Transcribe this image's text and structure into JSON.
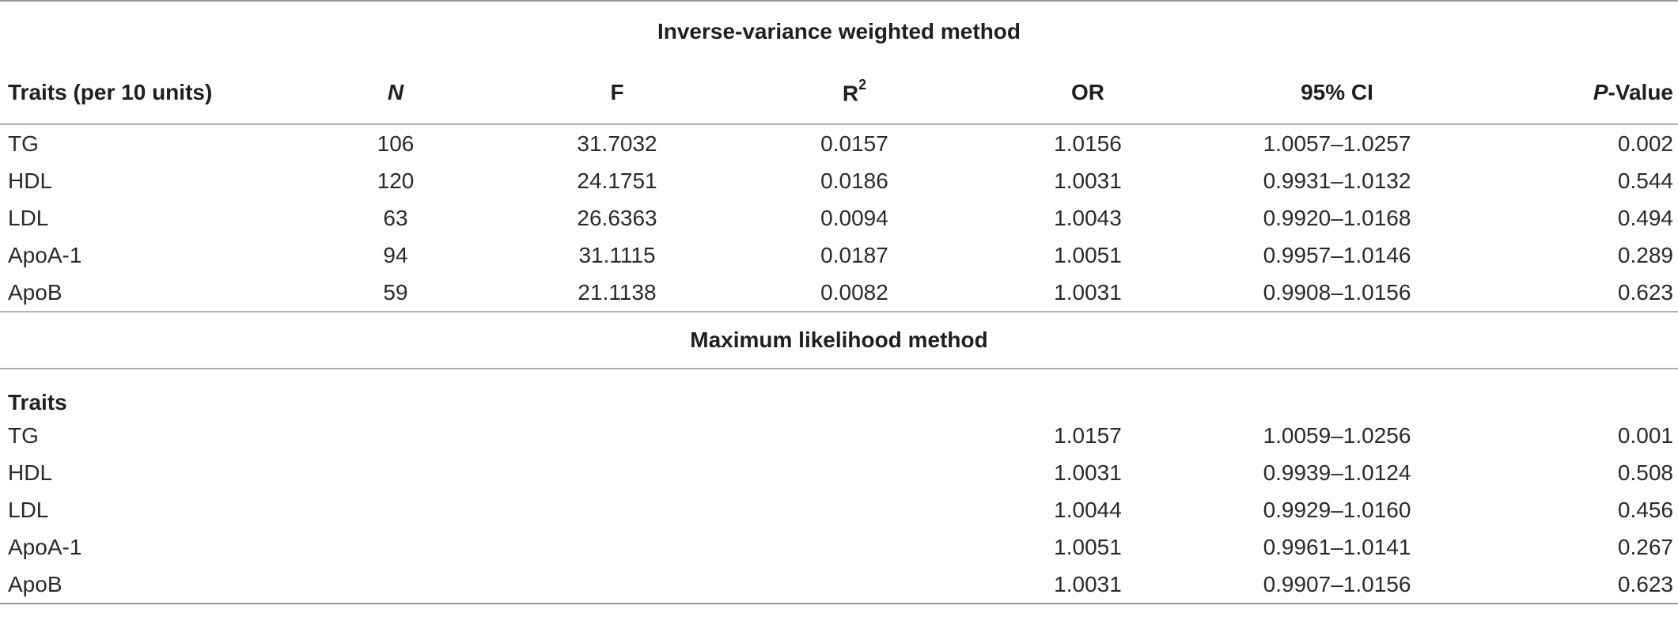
{
  "section1": {
    "title": "Inverse-variance weighted method",
    "headers": {
      "traits": "Traits (per 10 units)",
      "n": "N",
      "f": "F",
      "r2_base": "R",
      "r2_sup": "2",
      "or": "OR",
      "ci": "95% CI",
      "p_italic": "P",
      "p_rest": "-Value"
    },
    "rows": [
      {
        "trait": "TG",
        "n": "106",
        "f": "31.7032",
        "r2": "0.0157",
        "or": "1.0156",
        "ci": "1.0057–1.0257",
        "p": "0.002"
      },
      {
        "trait": "HDL",
        "n": "120",
        "f": "24.1751",
        "r2": "0.0186",
        "or": "1.0031",
        "ci": "0.9931–1.0132",
        "p": "0.544"
      },
      {
        "trait": "LDL",
        "n": "63",
        "f": "26.6363",
        "r2": "0.0094",
        "or": "1.0043",
        "ci": "0.9920–1.0168",
        "p": "0.494"
      },
      {
        "trait": "ApoA-1",
        "n": "94",
        "f": "31.1115",
        "r2": "0.0187",
        "or": "1.0051",
        "ci": "0.9957–1.0146",
        "p": "0.289"
      },
      {
        "trait": "ApoB",
        "n": "59",
        "f": "21.1138",
        "r2": "0.0082",
        "or": "1.0031",
        "ci": "0.9908–1.0156",
        "p": "0.623"
      }
    ]
  },
  "section2": {
    "title": "Maximum likelihood method",
    "traits_label": "Traits",
    "rows": [
      {
        "trait": "TG",
        "or": "1.0157",
        "ci": "1.0059–1.0256",
        "p": "0.001"
      },
      {
        "trait": "HDL",
        "or": "1.0031",
        "ci": "0.9939–1.0124",
        "p": "0.508"
      },
      {
        "trait": "LDL",
        "or": "1.0044",
        "ci": "0.9929–1.0160",
        "p": "0.456"
      },
      {
        "trait": "ApoA-1",
        "or": "1.0051",
        "ci": "0.9961–1.0141",
        "p": "0.267"
      },
      {
        "trait": "ApoB",
        "or": "1.0031",
        "ci": "0.9907–1.0156",
        "p": "0.623"
      }
    ]
  }
}
